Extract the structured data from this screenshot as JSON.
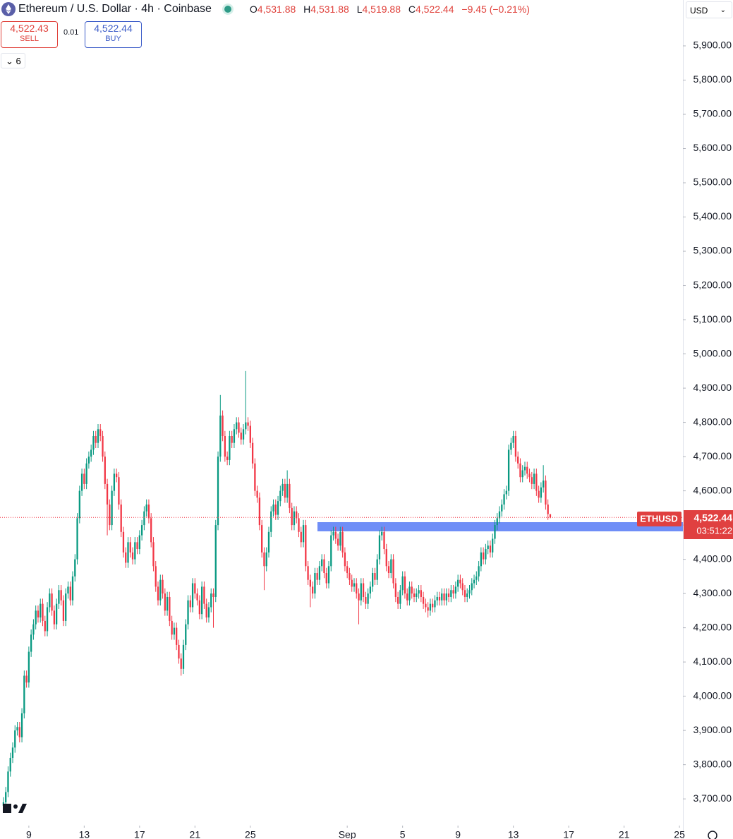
{
  "chart_data": {
    "type": "candlestick",
    "title": "Ethereum / U.S. Dollar · 4h · Coinbase",
    "up_color": "#089981",
    "down_color": "#f23645",
    "open": [
      3680,
      3690,
      3720,
      3780,
      3820,
      3850,
      3900,
      3910,
      3880,
      3950,
      4060,
      4040,
      4130,
      4180,
      4210,
      4250,
      4230,
      4270,
      4220,
      4190,
      4260,
      4300,
      4250,
      4210,
      4270,
      4310,
      4280,
      4220,
      4300,
      4320,
      4280,
      4350,
      4400,
      4520,
      4600,
      4650,
      4620,
      4680,
      4700,
      4720,
      4760,
      4740,
      4780,
      4760,
      4700,
      4620,
      4560,
      4500,
      4600,
      4650,
      4640,
      4560,
      4480,
      4420,
      4390,
      4450,
      4420,
      4400,
      4450,
      4430,
      4470,
      4500,
      4540,
      4560,
      4520,
      4450,
      4380,
      4320,
      4280,
      4340,
      4300,
      4250,
      4290,
      4220,
      4180,
      4200,
      4150,
      4110,
      4080,
      4150,
      4210,
      4280,
      4260,
      4330,
      4300,
      4280,
      4240,
      4320,
      4270,
      4230,
      4260,
      4300,
      4290,
      4500,
      4700,
      4820,
      4760,
      4700,
      4690,
      4760,
      4740,
      4780,
      4800,
      4770,
      4750,
      4780,
      4800,
      4790,
      4740,
      4680,
      4600,
      4580,
      4500,
      4420,
      4380,
      4420,
      4480,
      4540,
      4560,
      4530,
      4570,
      4600,
      4620,
      4580,
      4620,
      4550,
      4500,
      4540,
      4520,
      4480,
      4450,
      4500,
      4380,
      4340,
      4320,
      4300,
      4360,
      4340,
      4380,
      4400,
      4360,
      4330,
      4380,
      4470,
      4480,
      4460,
      4440,
      4480,
      4420,
      4380,
      4360,
      4340,
      4320,
      4330,
      4300,
      4280,
      4330,
      4290,
      4270,
      4300,
      4320,
      4360,
      4340,
      4400,
      4470,
      4480,
      4430,
      4380,
      4360,
      4400,
      4330,
      4290,
      4270,
      4310,
      4350,
      4300,
      4280,
      4320,
      4300,
      4290,
      4300,
      4310,
      4290,
      4270,
      4260,
      4250,
      4270,
      4260,
      4280,
      4290,
      4280,
      4300,
      4280,
      4300,
      4290,
      4310,
      4300,
      4320,
      4340,
      4330,
      4310,
      4290,
      4300,
      4310,
      4330,
      4340,
      4350,
      4380,
      4420,
      4400,
      4430,
      4440,
      4420,
      4460,
      4500,
      4520,
      4540,
      4560,
      4590,
      4600,
      4720,
      4740,
      4760,
      4700,
      4680,
      4640,
      4660,
      4670,
      4650,
      4640,
      4620,
      4650,
      4600,
      4580,
      4610,
      4630,
      4560,
      4531.88
    ],
    "high": [
      3705,
      3735,
      3795,
      3835,
      3865,
      3915,
      3925,
      3925,
      3965,
      4075,
      4075,
      4145,
      4195,
      4225,
      4265,
      4265,
      4285,
      4285,
      4235,
      4275,
      4315,
      4315,
      4265,
      4285,
      4325,
      4325,
      4295,
      4315,
      4335,
      4335,
      4365,
      4415,
      4535,
      4615,
      4665,
      4665,
      4695,
      4715,
      4735,
      4775,
      4775,
      4795,
      4795,
      4775,
      4715,
      4635,
      4575,
      4615,
      4665,
      4665,
      4655,
      4575,
      4495,
      4435,
      4465,
      4465,
      4435,
      4465,
      4465,
      4485,
      4515,
      4555,
      4575,
      4575,
      4535,
      4465,
      4395,
      4335,
      4355,
      4355,
      4315,
      4305,
      4305,
      4235,
      4215,
      4215,
      4165,
      4125,
      4165,
      4225,
      4295,
      4295,
      4345,
      4345,
      4315,
      4295,
      4335,
      4335,
      4285,
      4275,
      4315,
      4315,
      4515,
      4715,
      4880,
      4835,
      4775,
      4715,
      4775,
      4775,
      4795,
      4815,
      4815,
      4785,
      4795,
      4950,
      4815,
      4805,
      4755,
      4695,
      4615,
      4595,
      4515,
      4435,
      4435,
      4495,
      4555,
      4575,
      4575,
      4585,
      4615,
      4635,
      4635,
      4660,
      4635,
      4565,
      4555,
      4555,
      4535,
      4495,
      4515,
      4515,
      4395,
      4355,
      4335,
      4375,
      4375,
      4395,
      4415,
      4415,
      4375,
      4395,
      4485,
      4495,
      4495,
      4475,
      4495,
      4495,
      4435,
      4395,
      4375,
      4355,
      4345,
      4345,
      4315,
      4345,
      4345,
      4305,
      4315,
      4335,
      4375,
      4375,
      4415,
      4485,
      4495,
      4495,
      4445,
      4395,
      4415,
      4415,
      4345,
      4305,
      4325,
      4365,
      4365,
      4315,
      4335,
      4335,
      4315,
      4315,
      4325,
      4325,
      4305,
      4285,
      4275,
      4285,
      4285,
      4295,
      4305,
      4305,
      4315,
      4315,
      4315,
      4315,
      4325,
      4325,
      4335,
      4355,
      4355,
      4345,
      4325,
      4315,
      4325,
      4345,
      4355,
      4365,
      4395,
      4435,
      4435,
      4445,
      4455,
      4455,
      4475,
      4515,
      4535,
      4555,
      4575,
      4605,
      4615,
      4735,
      4755,
      4775,
      4775,
      4715,
      4695,
      4675,
      4685,
      4685,
      4665,
      4655,
      4665,
      4665,
      4615,
      4625,
      4675,
      4645,
      4575,
      4531.88
    ],
    "low": [
      3665,
      3675,
      3705,
      3765,
      3805,
      3835,
      3885,
      3865,
      3865,
      3935,
      4025,
      4025,
      4115,
      4165,
      4195,
      4215,
      4215,
      4205,
      4175,
      4175,
      4245,
      4235,
      4195,
      4195,
      4255,
      4265,
      4205,
      4205,
      4285,
      4265,
      4265,
      4335,
      4385,
      4505,
      4585,
      4605,
      4605,
      4665,
      4685,
      4705,
      4725,
      4725,
      4745,
      4685,
      4605,
      4470,
      4485,
      4485,
      4585,
      4625,
      4545,
      4465,
      4405,
      4375,
      4375,
      4405,
      4385,
      4385,
      4415,
      4415,
      4455,
      4485,
      4525,
      4505,
      4435,
      4365,
      4305,
      4265,
      4265,
      4285,
      4235,
      4235,
      4205,
      4165,
      4165,
      4135,
      4095,
      4060,
      4065,
      4135,
      4195,
      4245,
      4245,
      4285,
      4265,
      4225,
      4225,
      4255,
      4215,
      4215,
      4245,
      4200,
      4275,
      4485,
      4685,
      4745,
      4685,
      4675,
      4675,
      4725,
      4725,
      4765,
      4755,
      4735,
      4735,
      4765,
      4775,
      4725,
      4665,
      4585,
      4565,
      4485,
      4405,
      4310,
      4365,
      4405,
      4465,
      4525,
      4515,
      4515,
      4555,
      4585,
      4565,
      4565,
      4535,
      4485,
      4485,
      4505,
      4465,
      4435,
      4435,
      4365,
      4325,
      4260,
      4285,
      4285,
      4325,
      4325,
      4365,
      4345,
      4315,
      4315,
      4365,
      4455,
      4445,
      4425,
      4425,
      4405,
      4365,
      4345,
      4325,
      4305,
      4305,
      4285,
      4210,
      4265,
      4275,
      4255,
      4255,
      4285,
      4305,
      4325,
      4325,
      4385,
      4455,
      4415,
      4365,
      4345,
      4345,
      4315,
      4275,
      4255,
      4255,
      4295,
      4285,
      4265,
      4265,
      4285,
      4275,
      4275,
      4285,
      4275,
      4255,
      4245,
      4230,
      4235,
      4245,
      4245,
      4265,
      4265,
      4265,
      4265,
      4265,
      4275,
      4275,
      4285,
      4285,
      4305,
      4315,
      4295,
      4275,
      4275,
      4285,
      4295,
      4315,
      4325,
      4335,
      4365,
      4385,
      4385,
      4415,
      4405,
      4405,
      4445,
      4485,
      4505,
      4525,
      4545,
      4575,
      4585,
      4705,
      4725,
      4685,
      4665,
      4625,
      4625,
      4645,
      4635,
      4625,
      4605,
      4605,
      4585,
      4565,
      4565,
      4595,
      4545,
      4515,
      4519.88
    ],
    "close": [
      3690,
      3720,
      3780,
      3820,
      3850,
      3900,
      3910,
      3880,
      3950,
      4060,
      4040,
      4130,
      4180,
      4210,
      4250,
      4230,
      4270,
      4220,
      4190,
      4260,
      4300,
      4250,
      4210,
      4270,
      4310,
      4280,
      4220,
      4300,
      4320,
      4280,
      4350,
      4400,
      4520,
      4600,
      4650,
      4620,
      4680,
      4700,
      4720,
      4760,
      4740,
      4780,
      4760,
      4700,
      4620,
      4560,
      4500,
      4600,
      4650,
      4640,
      4560,
      4480,
      4420,
      4390,
      4450,
      4420,
      4400,
      4450,
      4430,
      4470,
      4500,
      4540,
      4560,
      4520,
      4450,
      4380,
      4320,
      4280,
      4340,
      4300,
      4250,
      4290,
      4220,
      4180,
      4200,
      4150,
      4110,
      4080,
      4150,
      4210,
      4280,
      4260,
      4330,
      4300,
      4280,
      4240,
      4320,
      4270,
      4230,
      4260,
      4300,
      4290,
      4500,
      4700,
      4820,
      4760,
      4700,
      4690,
      4760,
      4740,
      4780,
      4800,
      4770,
      4750,
      4780,
      4800,
      4790,
      4740,
      4680,
      4600,
      4580,
      4500,
      4420,
      4380,
      4420,
      4480,
      4540,
      4560,
      4530,
      4570,
      4600,
      4620,
      4580,
      4620,
      4550,
      4500,
      4540,
      4520,
      4480,
      4450,
      4500,
      4380,
      4340,
      4320,
      4300,
      4360,
      4340,
      4380,
      4400,
      4360,
      4330,
      4380,
      4470,
      4480,
      4460,
      4440,
      4480,
      4420,
      4380,
      4360,
      4340,
      4320,
      4330,
      4300,
      4280,
      4330,
      4290,
      4270,
      4300,
      4320,
      4360,
      4340,
      4400,
      4470,
      4480,
      4430,
      4380,
      4360,
      4400,
      4330,
      4290,
      4270,
      4310,
      4350,
      4300,
      4280,
      4320,
      4300,
      4290,
      4300,
      4310,
      4290,
      4270,
      4260,
      4250,
      4270,
      4260,
      4280,
      4290,
      4280,
      4300,
      4280,
      4300,
      4290,
      4310,
      4300,
      4320,
      4340,
      4330,
      4310,
      4290,
      4300,
      4310,
      4330,
      4340,
      4350,
      4380,
      4420,
      4400,
      4430,
      4440,
      4420,
      4460,
      4500,
      4520,
      4540,
      4560,
      4590,
      4600,
      4720,
      4740,
      4760,
      4700,
      4680,
      4640,
      4660,
      4670,
      4650,
      4640,
      4620,
      4650,
      4600,
      4580,
      4610,
      4630,
      4560,
      4531.88,
      4522.44
    ],
    "xlim": [
      -1.5,
      294.5
    ],
    "xticks": [
      {
        "value": 11,
        "label": "9"
      },
      {
        "value": 35,
        "label": "13"
      },
      {
        "value": 59,
        "label": "17"
      },
      {
        "value": 83,
        "label": "21"
      },
      {
        "value": 107,
        "label": "25"
      },
      {
        "value": 149,
        "label": "Sep"
      },
      {
        "value": 173,
        "label": "5"
      },
      {
        "value": 197,
        "label": "9"
      },
      {
        "value": 221,
        "label": "13"
      },
      {
        "value": 245,
        "label": "17"
      },
      {
        "value": 269,
        "label": "21"
      },
      {
        "value": 293,
        "label": "25"
      }
    ],
    "ylim": [
      3622,
      6034
    ],
    "yticks": [
      {
        "value": 3700,
        "label": "3,700.00"
      },
      {
        "value": 3800,
        "label": "3,800.00"
      },
      {
        "value": 3900,
        "label": "3,900.00"
      },
      {
        "value": 4000,
        "label": "4,000.00"
      },
      {
        "value": 4100,
        "label": "4,100.00"
      },
      {
        "value": 4200,
        "label": "4,200.00"
      },
      {
        "value": 4300,
        "label": "4,300.00"
      },
      {
        "value": 4400,
        "label": "4,400.00"
      },
      {
        "value": 4500,
        "label": "4,500.00"
      },
      {
        "value": 4600,
        "label": "4,600.00"
      },
      {
        "value": 4700,
        "label": "4,700.00"
      },
      {
        "value": 4800,
        "label": "4,800.00"
      },
      {
        "value": 4900,
        "label": "4,900.00"
      },
      {
        "value": 5000,
        "label": "5,000.00"
      },
      {
        "value": 5100,
        "label": "5,100.00"
      },
      {
        "value": 5200,
        "label": "5,200.00"
      },
      {
        "value": 5300,
        "label": "5,300.00"
      },
      {
        "value": 5400,
        "label": "5,400.00"
      },
      {
        "value": 5500,
        "label": "5,500.00"
      },
      {
        "value": 5600,
        "label": "5,600.00"
      },
      {
        "value": 5700,
        "label": "5,700.00"
      },
      {
        "value": 5800,
        "label": "5,800.00"
      },
      {
        "value": 5900,
        "label": "5,900.00"
      }
    ],
    "grid": false,
    "symbol_tag": "ETHUSD",
    "price_label": "4,522.44",
    "countdown": "03:51:22"
  },
  "header": {
    "o_key": "O",
    "o": "4,531.88",
    "h_key": "H",
    "h": "4,531.88",
    "l_key": "L",
    "l": "4,519.88",
    "c_key": "C",
    "c": "4,522.44",
    "change": "−9.45 (−0.21%)",
    "currency": "USD"
  },
  "trade": {
    "sell_price": "4,522.43",
    "sell": "SELL",
    "spread": "0.01",
    "buy_price": "4,522.44",
    "buy": "BUY"
  },
  "indicators": {
    "count": "6"
  }
}
